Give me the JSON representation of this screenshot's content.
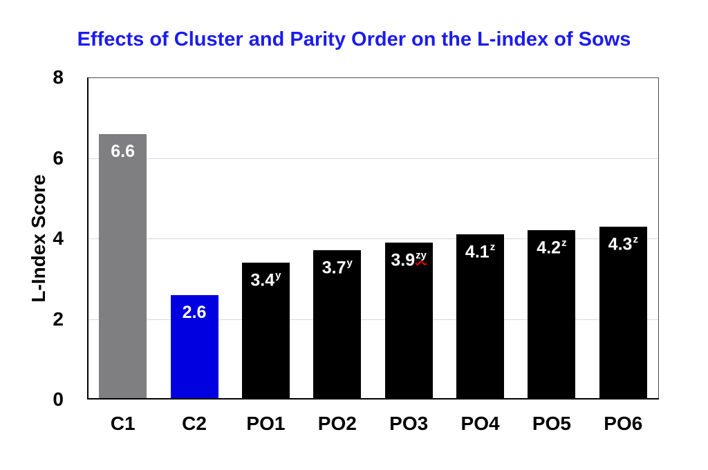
{
  "page": {
    "background": "#ffffff"
  },
  "chart_data": {
    "type": "bar",
    "title": "Effects of Cluster and Parity Order on the L-index of Sows",
    "title_color": "#1b1bf0",
    "ylabel": "L-Index Score",
    "xlabel": "",
    "ylim": [
      0,
      8
    ],
    "yticks": [
      0,
      2,
      4,
      6,
      8
    ],
    "grid": "horizontal",
    "legend": "none",
    "categories": [
      "C1",
      "C2",
      "PO1",
      "PO2",
      "PO3",
      "PO4",
      "PO5",
      "PO6"
    ],
    "values": [
      6.6,
      2.6,
      3.4,
      3.7,
      3.9,
      4.1,
      4.2,
      4.3
    ],
    "bars": [
      {
        "category": "C1",
        "value": 6.6,
        "label": "6.6",
        "superscript": "",
        "superscript_underline": "",
        "color": "#7f7f82",
        "label_color": "#ffffff"
      },
      {
        "category": "C2",
        "value": 2.6,
        "label": "2.6",
        "superscript": "",
        "superscript_underline": "",
        "color": "#0000e0",
        "label_color": "#ffffff"
      },
      {
        "category": "PO1",
        "value": 3.4,
        "label": "3.4",
        "superscript": "y",
        "superscript_underline": "",
        "color": "#000000",
        "label_color": "#ffffff"
      },
      {
        "category": "PO2",
        "value": 3.7,
        "label": "3.7",
        "superscript": "y",
        "superscript_underline": "",
        "color": "#000000",
        "label_color": "#ffffff"
      },
      {
        "category": "PO3",
        "value": 3.9,
        "label": "3.9",
        "superscript": "zy",
        "superscript_underline": "red-wavy",
        "color": "#000000",
        "label_color": "#ffffff"
      },
      {
        "category": "PO4",
        "value": 4.1,
        "label": "4.1",
        "superscript": "z",
        "superscript_underline": "",
        "color": "#000000",
        "label_color": "#ffffff"
      },
      {
        "category": "PO5",
        "value": 4.2,
        "label": "4.2",
        "superscript": "z",
        "superscript_underline": "",
        "color": "#000000",
        "label_color": "#ffffff"
      },
      {
        "category": "PO6",
        "value": 4.3,
        "label": "4.3",
        "superscript": "z",
        "superscript_underline": "",
        "color": "#000000",
        "label_color": "#ffffff"
      }
    ],
    "colors": {
      "grid": "#d9d9d9",
      "axis": "#000000",
      "plot_border": "#4d4d4d",
      "squiggle_red": "#ff0000"
    }
  }
}
